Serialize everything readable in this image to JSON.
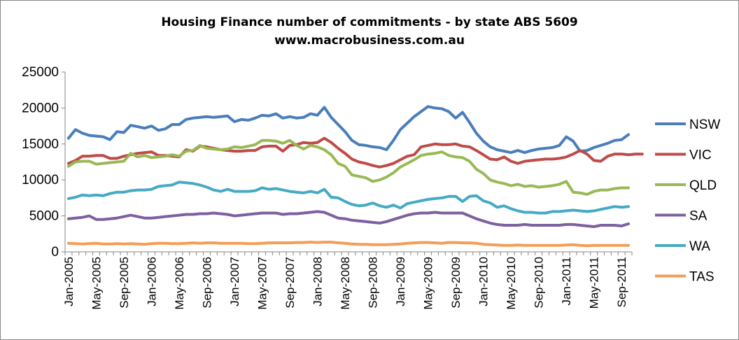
{
  "chart_data": {
    "type": "line",
    "title": "Housing Finance number of commitments - by state ABS 5609",
    "subtitle": "www.macrobusiness.com.au",
    "ylim": [
      0,
      25000
    ],
    "yticks": [
      0,
      5000,
      10000,
      15000,
      20000,
      25000
    ],
    "grid": false,
    "legend_position": "right",
    "x_start": "Jan-2005",
    "x_tick_labels": [
      "Jan-2005",
      "May-2005",
      "Sep-2005",
      "Jan-2006",
      "May-2006",
      "Sep-2006",
      "Jan-2007",
      "May-2007",
      "Sep-2007",
      "Jan-2008",
      "May-2008",
      "Sep-2008",
      "Jan-2009",
      "May-2009",
      "Sep-2009",
      "Jan-2010",
      "May-2010",
      "Sep-2010",
      "Jan-2011",
      "May-2011",
      "Sep-2011"
    ],
    "series": [
      {
        "name": "NSW",
        "color": "#4a7ebb",
        "values": [
          15800,
          17000,
          16500,
          16200,
          16100,
          16000,
          15600,
          16700,
          16600,
          17600,
          17400,
          17200,
          17500,
          16900,
          17100,
          17700,
          17700,
          18400,
          18600,
          18700,
          18800,
          18700,
          18800,
          18900,
          18100,
          18400,
          18300,
          18600,
          19000,
          18900,
          19200,
          18600,
          18800,
          18600,
          18700,
          19200,
          19000,
          20100,
          18700,
          17700,
          16700,
          15500,
          14900,
          14800,
          14600,
          14500,
          14200,
          15500,
          17000,
          17900,
          18800,
          19500,
          20200,
          20000,
          19900,
          19500,
          18600,
          19400,
          18000,
          16500,
          15400,
          14600,
          14200,
          14000,
          13800,
          14100,
          13800,
          14100,
          14300,
          14400,
          14500,
          14800,
          16000,
          15400,
          14000,
          14100,
          14500,
          14800,
          15100,
          15500,
          15600,
          16300
        ]
      },
      {
        "name": "VIC",
        "color": "#be4b48",
        "values": [
          12300,
          12700,
          13300,
          13300,
          13400,
          13400,
          13000,
          13000,
          13300,
          13500,
          13700,
          13800,
          13900,
          13400,
          13400,
          13300,
          13200,
          14200,
          14000,
          14700,
          14600,
          14400,
          14200,
          14100,
          14000,
          14000,
          14100,
          14100,
          14600,
          14700,
          14700,
          14000,
          14800,
          14900,
          15200,
          15100,
          15200,
          15800,
          15200,
          14400,
          13700,
          12900,
          12500,
          12300,
          12000,
          11800,
          12000,
          12300,
          12800,
          13300,
          13500,
          14600,
          14800,
          15000,
          14900,
          14900,
          15000,
          14700,
          14600,
          14100,
          13500,
          12900,
          12800,
          13200,
          12600,
          12300,
          12600,
          12700,
          12800,
          12900,
          12900,
          13000,
          13200,
          13600,
          14100,
          13600,
          12700,
          12600,
          13300,
          13600,
          13600,
          13500,
          13600,
          13600
        ]
      },
      {
        "name": "QLD",
        "color": "#98b954",
        "values": [
          11900,
          12500,
          12600,
          12600,
          12200,
          12300,
          12400,
          12500,
          12600,
          13700,
          13200,
          13400,
          13100,
          13200,
          13300,
          13500,
          13300,
          14000,
          14100,
          14800,
          14400,
          14300,
          14200,
          14300,
          14600,
          14500,
          14700,
          14900,
          15500,
          15500,
          15400,
          15100,
          15500,
          14800,
          14300,
          14800,
          14600,
          14200,
          13500,
          12300,
          11900,
          10700,
          10500,
          10300,
          9800,
          10000,
          10400,
          11000,
          11800,
          12300,
          12800,
          13400,
          13600,
          13700,
          13900,
          13400,
          13200,
          13100,
          12600,
          11500,
          10900,
          10000,
          9700,
          9500,
          9200,
          9400,
          9100,
          9200,
          9000,
          9100,
          9200,
          9400,
          9800,
          8300,
          8200,
          8000,
          8400,
          8600,
          8600,
          8800,
          8900,
          8900
        ]
      },
      {
        "name": "SA",
        "color": "#7d60a0",
        "values": [
          4600,
          4700,
          4800,
          5000,
          4500,
          4500,
          4600,
          4700,
          4900,
          5100,
          4900,
          4700,
          4700,
          4800,
          4900,
          5000,
          5100,
          5200,
          5200,
          5300,
          5300,
          5400,
          5300,
          5200,
          5000,
          5100,
          5200,
          5300,
          5400,
          5400,
          5400,
          5200,
          5300,
          5300,
          5400,
          5500,
          5600,
          5500,
          5100,
          4700,
          4600,
          4400,
          4300,
          4200,
          4100,
          4000,
          4200,
          4500,
          4800,
          5100,
          5300,
          5400,
          5400,
          5500,
          5400,
          5400,
          5400,
          5400,
          5000,
          4600,
          4300,
          4000,
          3800,
          3700,
          3700,
          3700,
          3800,
          3700,
          3700,
          3700,
          3700,
          3700,
          3800,
          3800,
          3700,
          3600,
          3500,
          3700,
          3700,
          3700,
          3600,
          3900
        ]
      },
      {
        "name": "WA",
        "color": "#46aac5",
        "values": [
          7400,
          7600,
          7900,
          7800,
          7900,
          7800,
          8100,
          8300,
          8300,
          8500,
          8600,
          8600,
          8700,
          9100,
          9200,
          9300,
          9700,
          9600,
          9500,
          9300,
          9000,
          8600,
          8400,
          8700,
          8400,
          8400,
          8400,
          8500,
          8900,
          8700,
          8800,
          8600,
          8400,
          8300,
          8200,
          8400,
          8200,
          8700,
          7600,
          7500,
          7000,
          6600,
          6400,
          6500,
          6800,
          6400,
          6200,
          6500,
          6100,
          6700,
          6900,
          7100,
          7300,
          7400,
          7500,
          7700,
          7700,
          7000,
          7700,
          7800,
          7100,
          6800,
          6200,
          6400,
          6000,
          5700,
          5500,
          5500,
          5400,
          5400,
          5600,
          5600,
          5700,
          5800,
          5700,
          5600,
          5700,
          5900,
          6100,
          6300,
          6200,
          6300
        ]
      },
      {
        "name": "TAS",
        "color": "#f59d56",
        "values": [
          1200,
          1150,
          1100,
          1150,
          1200,
          1100,
          1100,
          1150,
          1100,
          1150,
          1100,
          1050,
          1150,
          1200,
          1200,
          1150,
          1150,
          1200,
          1250,
          1200,
          1250,
          1250,
          1200,
          1200,
          1200,
          1200,
          1150,
          1150,
          1200,
          1250,
          1250,
          1250,
          1250,
          1300,
          1300,
          1350,
          1300,
          1350,
          1350,
          1250,
          1200,
          1100,
          1050,
          1050,
          1000,
          1000,
          1000,
          1050,
          1100,
          1200,
          1250,
          1300,
          1300,
          1250,
          1200,
          1300,
          1300,
          1250,
          1250,
          1200,
          1050,
          1000,
          950,
          900,
          900,
          950,
          900,
          900,
          900,
          900,
          900,
          900,
          950,
          1000,
          900,
          850,
          900,
          900,
          900,
          900,
          900,
          900
        ]
      }
    ]
  }
}
